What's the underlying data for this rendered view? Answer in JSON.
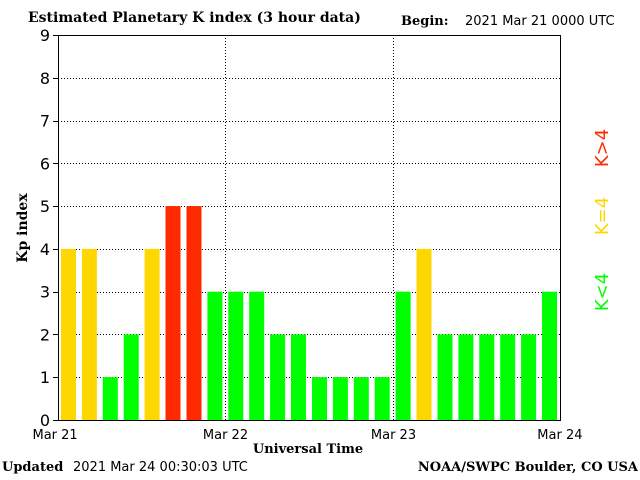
{
  "header": {
    "title": "Estimated Planetary K index (3 hour data)",
    "begin_label": "Begin:",
    "begin_value": "2021 Mar 21 0000 UTC"
  },
  "footer": {
    "updated_label": "Updated",
    "updated_value": "2021 Mar 24 00:30:03 UTC",
    "source": "NOAA/SWPC Boulder, CO USA"
  },
  "legend": {
    "high": {
      "label": "K>4",
      "color": "#ff2a00"
    },
    "mid": {
      "label": "K=4",
      "color": "#ffd700"
    },
    "low": {
      "label": "K<4",
      "color": "#00ff00"
    }
  },
  "chart_data": {
    "type": "bar",
    "ylabel": "Kp index",
    "xlabel": "Universal Time",
    "ylim": [
      0,
      9
    ],
    "yticks": [
      0,
      1,
      2,
      3,
      4,
      5,
      6,
      7,
      8,
      9
    ],
    "xlim": [
      0,
      24
    ],
    "xticks": [
      {
        "pos": 0,
        "label": "Mar 21"
      },
      {
        "pos": 8,
        "label": "Mar 22"
      },
      {
        "pos": 16,
        "label": "Mar 23"
      },
      {
        "pos": 24,
        "label": "Mar 24"
      }
    ],
    "grid": true,
    "values": [
      4,
      4,
      1,
      2,
      4,
      5,
      5,
      3,
      3,
      3,
      2,
      2,
      1,
      1,
      1,
      1,
      3,
      4,
      2,
      2,
      2,
      2,
      2,
      3
    ]
  }
}
